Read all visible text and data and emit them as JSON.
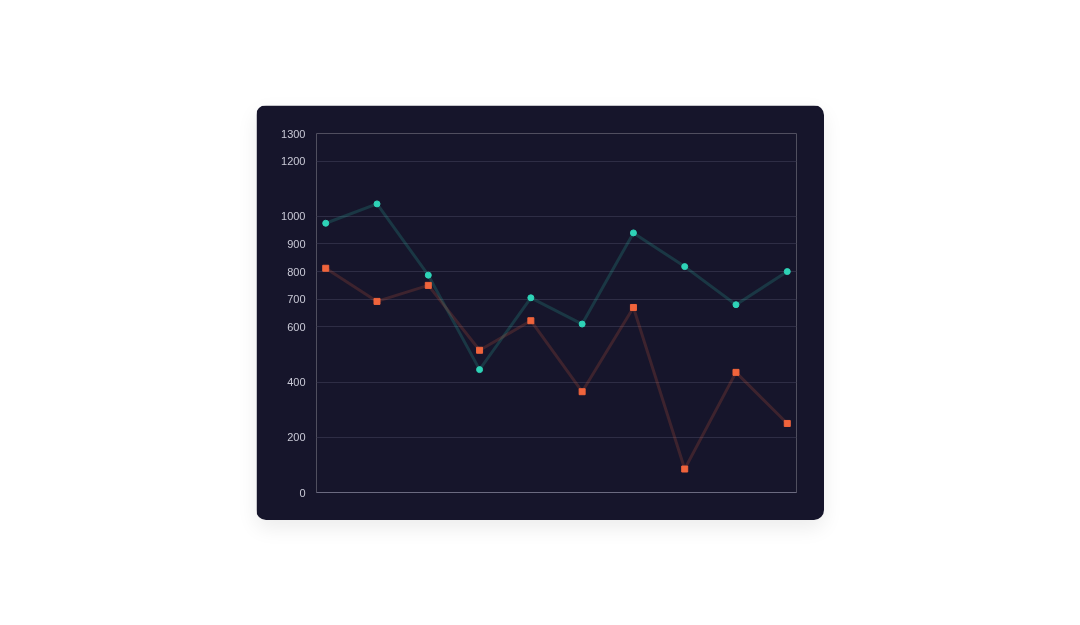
{
  "chart_data": {
    "type": "line",
    "categories": [
      null,
      null,
      null,
      null,
      null,
      null,
      null,
      null,
      null,
      null
    ],
    "series": [
      {
        "color": "#2ed3b7",
        "marker": "circle",
        "values": [
          975,
          1045,
          787,
          445,
          705,
          610,
          940,
          818,
          680,
          800
        ]
      },
      {
        "color": "#f0643c",
        "marker": "square",
        "values": [
          812,
          692,
          750,
          515,
          622,
          365,
          670,
          85,
          435,
          250
        ]
      }
    ],
    "ylim": [
      0,
      1300
    ],
    "yticks": [
      0,
      200,
      400,
      600,
      700,
      800,
      900,
      1000,
      1200,
      1300
    ],
    "grid": "y",
    "tick_labels": "y"
  }
}
